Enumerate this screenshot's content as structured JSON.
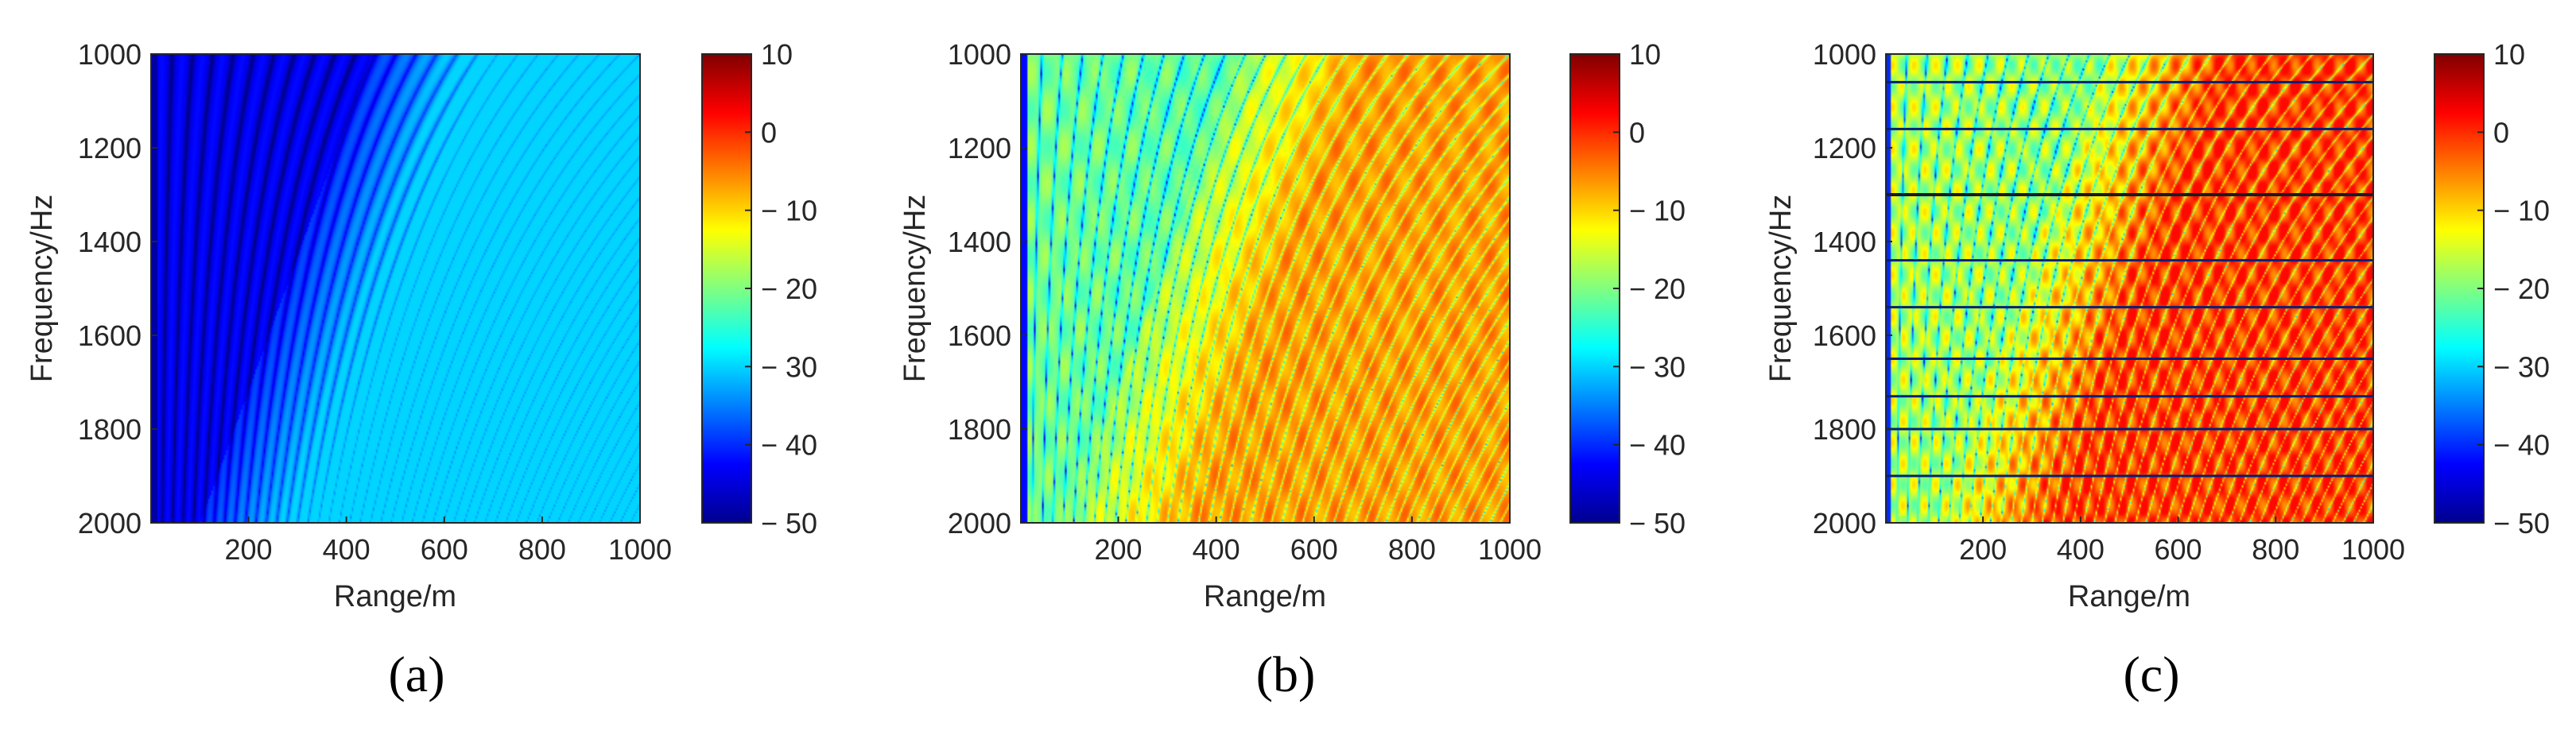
{
  "chart_data": [
    {
      "type": "heatmap",
      "caption": "(a)",
      "xlabel": "Range/m",
      "ylabel": "Frequency/Hz",
      "x_range": [
        1,
        1000
      ],
      "y_range": [
        1000,
        2000
      ],
      "y_reversed": true,
      "x_ticks": [
        200,
        400,
        600,
        800,
        1000
      ],
      "y_ticks": [
        1000,
        1200,
        1400,
        1600,
        1800,
        2000
      ],
      "x_tick_labels": [
        "200",
        "400",
        "600",
        "800",
        "1000"
      ],
      "y_tick_labels": [
        "1000",
        "1200",
        "1400",
        "1600",
        "1800",
        "2000"
      ],
      "colorbar": {
        "range": [
          -50,
          10
        ],
        "ticks": [
          10,
          0,
          -10,
          -20,
          -30,
          -40,
          -50
        ],
        "tick_labels": [
          "10",
          "0",
          "− 10",
          "− 20",
          "− 30",
          "− 40",
          "− 50"
        ],
        "colormap": "jet"
      },
      "field": {
        "description_level_db": {
          "min": -50,
          "max": -30
        },
        "fringe_count": 24,
        "horizontal_bands": []
      }
    },
    {
      "type": "heatmap",
      "caption": "(b)",
      "xlabel": "Range/m",
      "ylabel": "Frequency/Hz",
      "x_range": [
        1,
        1000
      ],
      "y_range": [
        1000,
        2000
      ],
      "y_reversed": true,
      "x_ticks": [
        200,
        400,
        600,
        800,
        1000
      ],
      "y_ticks": [
        1000,
        1200,
        1400,
        1600,
        1800,
        2000
      ],
      "x_tick_labels": [
        "200",
        "400",
        "600",
        "800",
        "1000"
      ],
      "y_tick_labels": [
        "1000",
        "1200",
        "1400",
        "1600",
        "1800",
        "2000"
      ],
      "colorbar": {
        "range": [
          -50,
          10
        ],
        "ticks": [
          10,
          0,
          -10,
          -20,
          -30,
          -40,
          -50
        ],
        "tick_labels": [
          "10",
          "0",
          "− 10",
          "− 20",
          "− 30",
          "− 40",
          "− 50"
        ],
        "colormap": "jet"
      },
      "field": {
        "description_level_db": {
          "min": -45,
          "max": -2
        },
        "fringe_count": 24,
        "horizontal_bands": []
      }
    },
    {
      "type": "heatmap",
      "caption": "(c)",
      "xlabel": "Range/m",
      "ylabel": "Frequency/Hz",
      "x_range": [
        1,
        1000
      ],
      "y_range": [
        1000,
        2000
      ],
      "y_reversed": true,
      "x_ticks": [
        200,
        400,
        600,
        800,
        1000
      ],
      "y_ticks": [
        1000,
        1200,
        1400,
        1600,
        1800,
        2000
      ],
      "x_tick_labels": [
        "200",
        "400",
        "600",
        "800",
        "1000"
      ],
      "y_tick_labels": [
        "1000",
        "1200",
        "1400",
        "1600",
        "1800",
        "2000"
      ],
      "colorbar": {
        "range": [
          -50,
          10
        ],
        "ticks": [
          10,
          0,
          -10,
          -20,
          -30,
          -40,
          -50
        ],
        "tick_labels": [
          "10",
          "0",
          "− 10",
          "− 20",
          "− 30",
          "− 40",
          "− 50"
        ],
        "colormap": "jet"
      },
      "field": {
        "description_level_db": {
          "min": -48,
          "max": 2
        },
        "fringe_count": 24,
        "horizontal_bands": [
          1060,
          1160,
          1300,
          1440,
          1540,
          1650,
          1730,
          1800,
          1900
        ]
      }
    }
  ]
}
